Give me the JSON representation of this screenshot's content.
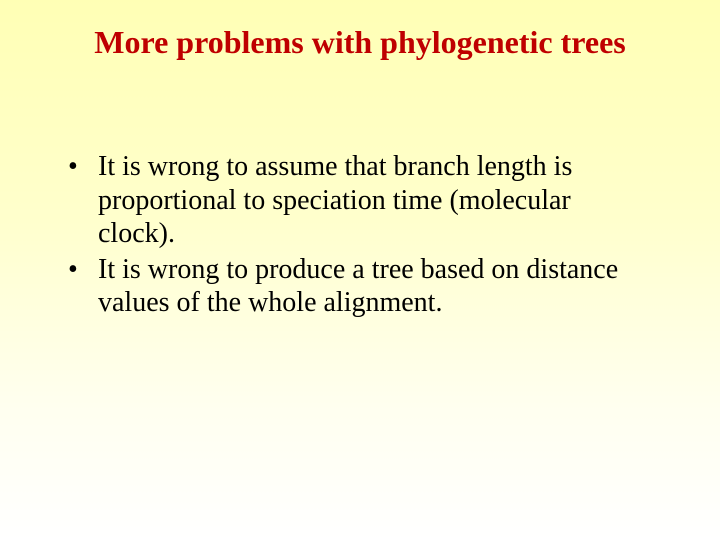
{
  "slide": {
    "title": "More problems with phylogenetic trees",
    "bullets": [
      "It is wrong to assume that branch length is proportional to speciation time (molecular clock).",
      "It is wrong to produce a tree based on distance values of the whole alignment."
    ],
    "colors": {
      "title_color": "#bf0000",
      "body_color": "#000000",
      "bg_top": "#ffffb5",
      "bg_bottom": "#ffffff"
    },
    "fonts": {
      "family": "Times New Roman",
      "title_size_pt": 32,
      "body_size_pt": 28,
      "title_weight": "bold",
      "body_weight": "normal"
    }
  }
}
